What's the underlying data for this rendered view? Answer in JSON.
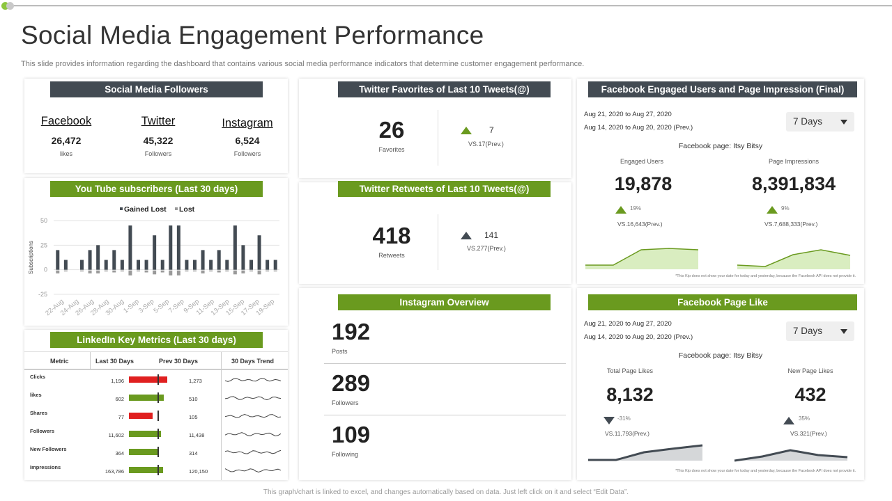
{
  "title": "Social Media Engagement Performance",
  "subtitle": "This slide provides information regarding the dashboard that contains various social media performance indicators that  determine customer engagement performance.",
  "footer": "This graph/chart is linked to excel, and changes automatically based on data. Just left click on it and select “Edit Data”.",
  "colors": {
    "dark": "#434b53",
    "green": "#6a9a1f",
    "red": "#e02020",
    "light_green": "#d9edc0"
  },
  "followers": {
    "header": "Social Media Followers",
    "facebook": {
      "name": "Facebook",
      "value": "26,472",
      "unit": "likes"
    },
    "twitter": {
      "name": "Twitter",
      "value": "45,322",
      "unit": "Followers"
    },
    "instagram": {
      "name": "Instagram",
      "value": "6,524",
      "unit": "Followers"
    }
  },
  "youtube": {
    "header": "You Tube subscribers  (Last 30 days)",
    "legend_gained": "Gained Lost",
    "legend_lost": "Lost",
    "ylabel": "Subscriptions"
  },
  "chart_data": {
    "type": "bar",
    "title": "You Tube subscribers  (Last 30 days)",
    "ylabel": "Subscriptions",
    "ylim": [
      -25,
      50
    ],
    "yticks": [
      "50",
      "25",
      "0",
      "-25"
    ],
    "tick_labels": [
      "22-Aug",
      "24-Aug",
      "26-Aug",
      "28-Aug",
      "30-Aug",
      "1-Sep",
      "3-Sep",
      "5-Sep",
      "7-Sep",
      "9-Sep",
      "11-Sep",
      "13-Sep",
      "15-Sep",
      "17-Sep",
      "19-Sep"
    ],
    "series": [
      {
        "name": "Gained Lost",
        "values": [
          20,
          10,
          0,
          10,
          20,
          25,
          10,
          20,
          10,
          45,
          10,
          10,
          35,
          10,
          45,
          45,
          10,
          10,
          20,
          10,
          20,
          10,
          45,
          25,
          10,
          35,
          10,
          10
        ]
      },
      {
        "name": "Lost",
        "values": [
          -3,
          -1,
          0,
          -1,
          -3,
          -3,
          -1,
          -2,
          -1,
          -5,
          -1,
          -2,
          -4,
          -2,
          -5,
          -5,
          -1,
          -1,
          -3,
          -1,
          -2,
          -1,
          -4,
          -3,
          -1,
          -4,
          -1,
          -1
        ]
      }
    ]
  },
  "linkedin": {
    "header": "LinkedIn Key Metrics (Last 30 days)",
    "col_metric": "Metric",
    "col_last": "Last 30 Days",
    "col_prev": "Prev 30 Days",
    "col_trend": "30 Days Trend",
    "rows": [
      {
        "metric": "Clicks",
        "last": "1,196",
        "prev": "1,273",
        "bar": 0.94,
        "color": "#e02020"
      },
      {
        "metric": "likes",
        "last": "602",
        "prev": "510",
        "bar": 0.87,
        "color": "#6a9a1f"
      },
      {
        "metric": "Shares",
        "last": "77",
        "prev": "105",
        "bar": 0.58,
        "color": "#e02020"
      },
      {
        "metric": "Followers",
        "last": "11,602",
        "prev": "11,438",
        "bar": 0.8,
        "color": "#6a9a1f"
      },
      {
        "metric": "New Followers",
        "last": "364",
        "prev": "314",
        "bar": 0.74,
        "color": "#6a9a1f"
      },
      {
        "metric": "Impressions",
        "last": "163,786",
        "prev": "120,150",
        "bar": 0.84,
        "color": "#6a9a1f"
      }
    ]
  },
  "tw_fav": {
    "header": "Twitter Favorites of Last 10 Tweets(@)",
    "value": "26",
    "label": "Favorites",
    "delta": "7",
    "prev": "VS.17(Prev.)"
  },
  "tw_rt": {
    "header": "Twitter Retweets of Last 10 Tweets(@)",
    "value": "418",
    "label": "Retweets",
    "delta": "141",
    "prev": "VS.277(Prev.)"
  },
  "instagram": {
    "header": "Instagram Overview",
    "posts": {
      "value": "192",
      "label": "Posts"
    },
    "followers": {
      "value": "289",
      "label": "Followers"
    },
    "following": {
      "value": "109",
      "label": "Following"
    }
  },
  "fb_engaged": {
    "header": "Facebook Engaged Users  and Page Impression (Final)",
    "date1": "Aug 21, 2020 to Aug 27, 2020",
    "date2": "Aug 14, 2020 to Aug 20, 2020 (Prev.)",
    "select": "7 Days",
    "page": "Facebook page: Itsy Bitsy",
    "m1": {
      "label": "Engaged Users",
      "value": "19,878",
      "delta": "19%",
      "prev": "VS.16,643(Prev.)"
    },
    "m2": {
      "label": "Page Impressions",
      "value": "8,391,834",
      "delta": "9%",
      "prev": "VS.7,688,333(Prev.)"
    },
    "note": "*This Kip does not show your date for today and yesterday, because the Facebook API does not provide it."
  },
  "fb_like": {
    "header": "Facebook Page Like",
    "date1": "Aug 21, 2020 to Aug 27, 2020",
    "date2": "Aug 14, 2020 to Aug 20, 2020 (Prev.)",
    "select": "7 Days",
    "page": "Facebook page: Itsy Bitsy",
    "m1": {
      "label": "Total Page Likes",
      "value": "8,132",
      "delta": "-31%",
      "prev": "VS.11,793(Prev.)"
    },
    "m2": {
      "label": "New Page Likes",
      "value": "432",
      "delta": "35%",
      "prev": "VS.321(Prev.)"
    },
    "note": "*This Kip does not show your date for today and yesterday, because the Facebook API does not provide it."
  }
}
